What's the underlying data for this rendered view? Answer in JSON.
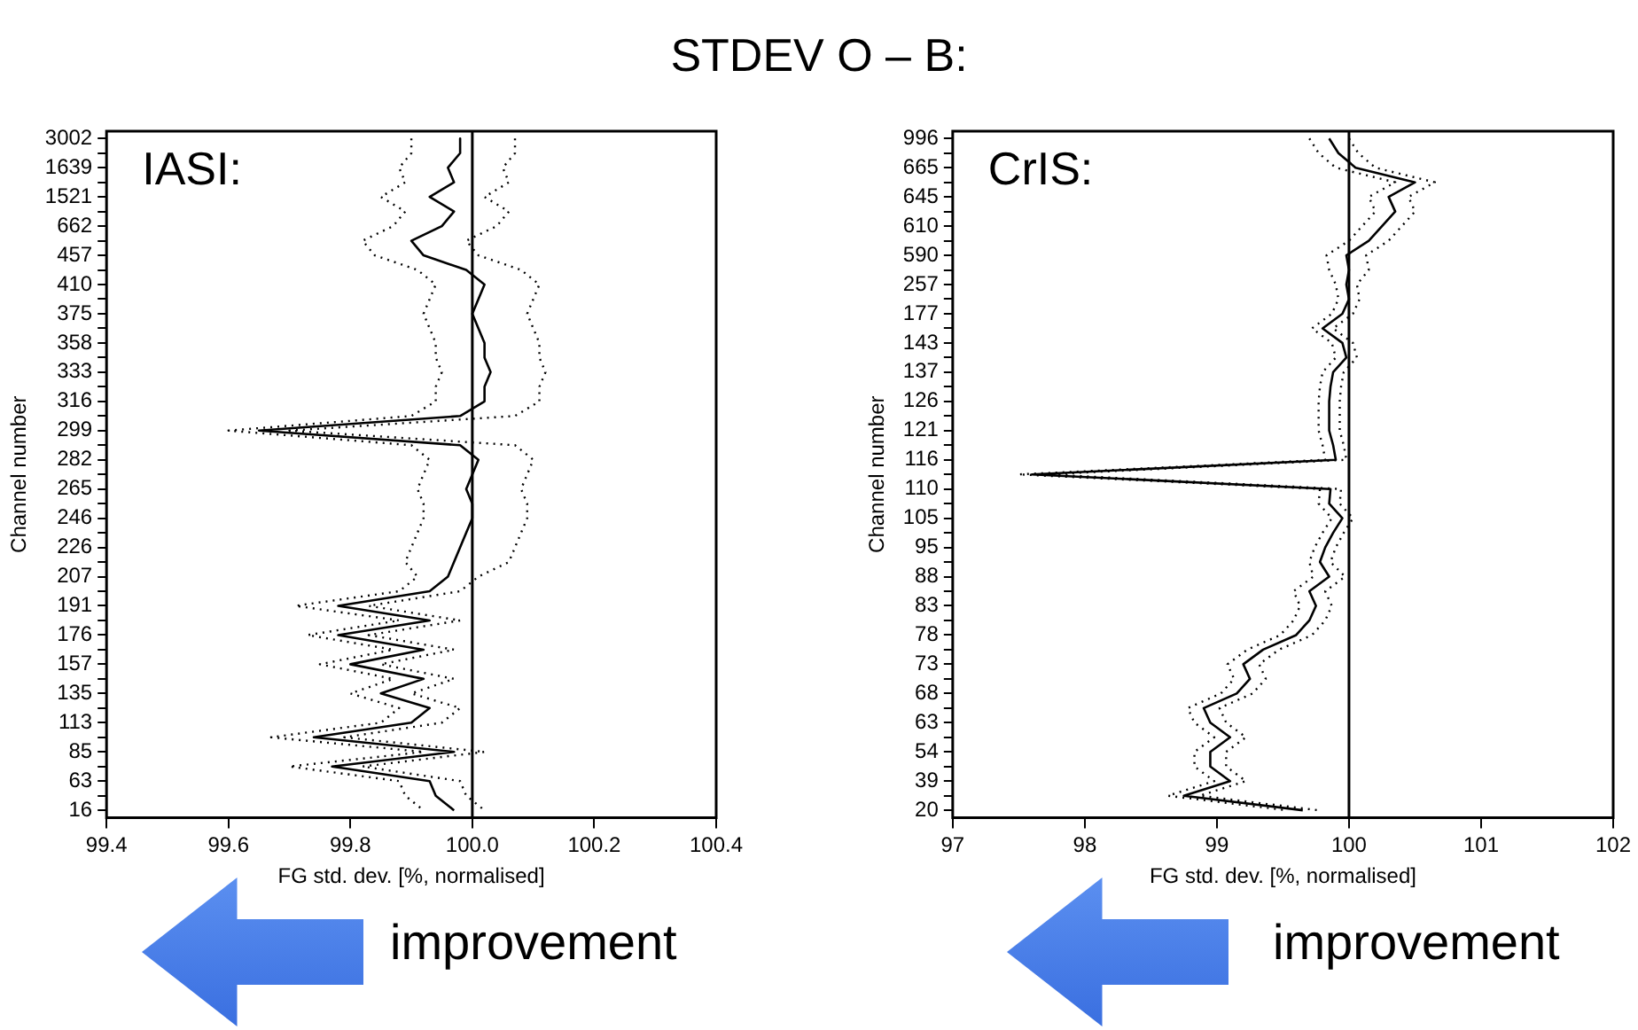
{
  "chart_data": [
    {
      "type": "line",
      "orientation": "horizontal",
      "title": "STDEV O – B:",
      "xlabel": "FG std. dev. [%, normalised]",
      "ylabel": "Channel number",
      "annotations": [
        "IASI:",
        "improvement"
      ],
      "xlim": [
        99.4,
        100.4
      ],
      "xticks": [
        99.4,
        99.6,
        99.8,
        {
          "value": 100,
          "label": "100.0"
        },
        100.2,
        100.4
      ],
      "categories": [
        "3002",
        null,
        "1639",
        null,
        "1521",
        null,
        "662",
        null,
        "457",
        null,
        "410",
        null,
        "375",
        null,
        "358",
        null,
        "333",
        null,
        "316",
        null,
        "299",
        null,
        "282",
        null,
        "265",
        null,
        "246",
        null,
        "226",
        null,
        "207",
        null,
        "191",
        null,
        "176",
        null,
        "157",
        null,
        "135",
        null,
        "113",
        null,
        "85",
        null,
        "63",
        null,
        "16"
      ],
      "grid": false,
      "legend": false,
      "marker": "none",
      "ref_lines": [
        {
          "axis": "x",
          "value": 100,
          "color": "#000000"
        }
      ],
      "series": [
        {
          "color": "#000000",
          "line_style": "solid",
          "values": [
            99.98,
            99.98,
            99.96,
            99.97,
            99.93,
            99.97,
            99.95,
            99.9,
            99.92,
            99.99,
            100.02,
            100.01,
            100.0,
            100.01,
            100.02,
            100.02,
            100.03,
            100.02,
            100.02,
            99.98,
            99.65,
            99.98,
            100.01,
            100.0,
            99.99,
            100.0,
            100.0,
            99.99,
            99.98,
            99.97,
            99.96,
            99.93,
            99.78,
            99.93,
            99.78,
            99.92,
            99.8,
            99.92,
            99.85,
            99.93,
            99.9,
            99.74,
            99.97,
            99.77,
            99.93,
            99.94,
            99.97
          ]
        },
        {
          "color": "#000000",
          "line_style": "dotted",
          "values": [
            99.9,
            99.9,
            99.88,
            99.89,
            99.85,
            99.89,
            99.87,
            99.82,
            99.84,
            99.91,
            99.94,
            99.93,
            99.92,
            99.93,
            99.94,
            99.94,
            99.95,
            99.94,
            99.94,
            99.9,
            99.6,
            99.9,
            99.93,
            99.92,
            99.91,
            99.92,
            99.92,
            99.91,
            99.9,
            99.89,
            99.91,
            99.88,
            99.71,
            99.88,
            99.73,
            99.87,
            99.75,
            99.87,
            99.8,
            99.88,
            99.85,
            99.67,
            99.92,
            99.7,
            99.88,
            99.89,
            99.92
          ]
        },
        {
          "color": "#000000",
          "line_style": "dotted",
          "values": [
            100.07,
            100.07,
            100.05,
            100.06,
            100.02,
            100.06,
            100.04,
            99.99,
            100.01,
            100.08,
            100.11,
            100.1,
            100.09,
            100.1,
            100.11,
            100.11,
            100.12,
            100.11,
            100.11,
            100.07,
            99.7,
            100.07,
            100.1,
            100.09,
            100.08,
            100.09,
            100.09,
            100.08,
            100.07,
            100.06,
            100.01,
            99.98,
            99.83,
            99.98,
            99.83,
            99.97,
            99.85,
            99.97,
            99.9,
            99.98,
            99.95,
            99.79,
            100.02,
            99.82,
            99.98,
            99.99,
            100.02
          ]
        }
      ]
    },
    {
      "type": "line",
      "orientation": "horizontal",
      "xlabel": "FG std. dev. [%, normalised]",
      "ylabel": "Channel number",
      "annotations": [
        "CrIS:",
        "improvement"
      ],
      "xlim": [
        97,
        102
      ],
      "xticks": [
        97,
        98,
        99,
        100,
        101,
        102
      ],
      "categories": [
        "996",
        null,
        "665",
        null,
        "645",
        null,
        "610",
        null,
        "590",
        null,
        "257",
        null,
        "177",
        null,
        "143",
        null,
        "137",
        null,
        "126",
        null,
        "121",
        null,
        "116",
        null,
        "110",
        null,
        "105",
        null,
        "95",
        null,
        "88",
        null,
        "83",
        null,
        "78",
        null,
        "73",
        null,
        "68",
        null,
        "63",
        null,
        "54",
        null,
        "39",
        null,
        "20"
      ],
      "grid": false,
      "legend": false,
      "marker": "none",
      "ref_lines": [
        {
          "axis": "x",
          "value": 100,
          "color": "#000000"
        }
      ],
      "series": [
        {
          "color": "#000000",
          "line_style": "solid",
          "values": [
            99.85,
            99.92,
            100.05,
            100.5,
            100.3,
            100.35,
            100.25,
            100.15,
            99.98,
            100.0,
            99.98,
            100.0,
            99.95,
            99.8,
            99.95,
            99.98,
            99.88,
            99.86,
            99.85,
            99.85,
            99.85,
            99.88,
            99.9,
            97.6,
            99.86,
            99.85,
            99.95,
            99.88,
            99.82,
            99.78,
            99.85,
            99.7,
            99.75,
            99.7,
            99.6,
            99.35,
            99.2,
            99.25,
            99.15,
            98.9,
            98.95,
            99.1,
            98.95,
            98.95,
            99.1,
            98.75,
            99.65
          ]
        },
        {
          "color": "#000000",
          "line_style": "dotted",
          "values": [
            99.7,
            99.77,
            99.9,
            100.35,
            100.15,
            100.2,
            100.1,
            100.0,
            99.83,
            99.85,
            99.9,
            99.92,
            99.87,
            99.72,
            99.87,
            99.9,
            99.8,
            99.78,
            99.77,
            99.77,
            99.77,
            99.8,
            99.82,
            97.5,
            99.78,
            99.77,
            99.87,
            99.8,
            99.74,
            99.7,
            99.73,
            99.58,
            99.63,
            99.58,
            99.48,
            99.23,
            99.08,
            99.13,
            99.03,
            98.78,
            98.83,
            98.98,
            98.83,
            98.83,
            98.98,
            98.63,
            99.53
          ]
        },
        {
          "color": "#000000",
          "line_style": "dotted",
          "values": [
            100.0,
            100.07,
            100.2,
            100.65,
            100.45,
            100.5,
            100.4,
            100.3,
            100.13,
            100.15,
            100.06,
            100.08,
            100.03,
            99.88,
            100.03,
            100.06,
            99.96,
            99.94,
            99.93,
            99.93,
            99.93,
            99.96,
            99.98,
            97.7,
            99.94,
            99.93,
            100.03,
            99.96,
            99.9,
            99.86,
            99.97,
            99.82,
            99.87,
            99.82,
            99.72,
            99.47,
            99.32,
            99.37,
            99.27,
            99.02,
            99.07,
            99.22,
            99.07,
            99.07,
            99.22,
            98.87,
            99.77
          ]
        }
      ]
    }
  ]
}
